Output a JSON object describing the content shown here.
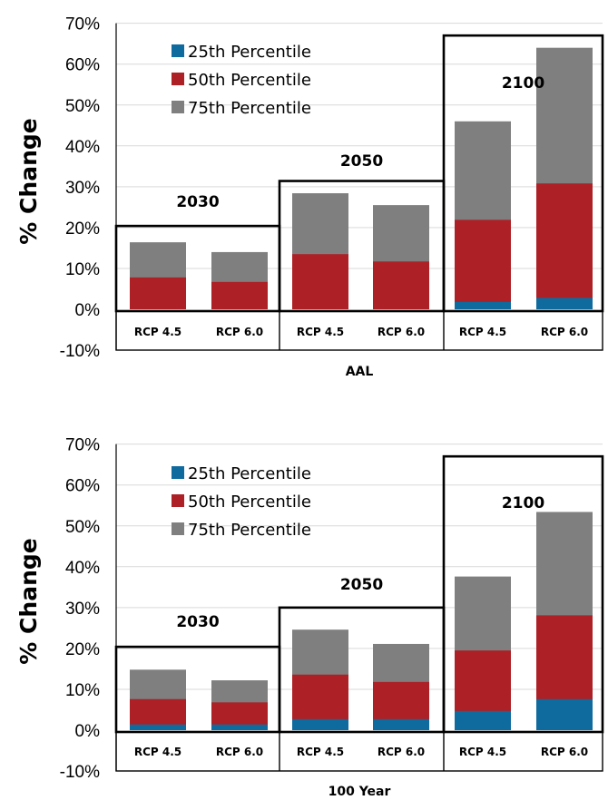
{
  "chart_data": [
    {
      "type": "bar",
      "stacked": "overlay",
      "xlabel": "AAL",
      "ylabel": "% Change",
      "ylim": [
        -10,
        70
      ],
      "yticks": [
        "-10%",
        "0%",
        "10%",
        "20%",
        "30%",
        "40%",
        "50%",
        "60%",
        "70%"
      ],
      "categories": [
        "RCP 4.5",
        "RCP 6.0",
        "RCP 4.5",
        "RCP 6.0",
        "RCP 4.5",
        "RCP 6.0"
      ],
      "groups": [
        {
          "label": "2030",
          "categories": [
            0,
            1
          ]
        },
        {
          "label": "2050",
          "categories": [
            2,
            3
          ]
        },
        {
          "label": "2100",
          "categories": [
            4,
            5
          ]
        }
      ],
      "series": [
        {
          "name": "75th Percentile",
          "color": "#7f7f7f",
          "values": [
            16.4,
            14.0,
            28.4,
            25.5,
            46.0,
            64.0
          ]
        },
        {
          "name": "50th Percentile",
          "color": "#ad2026",
          "values": [
            7.8,
            6.7,
            13.5,
            11.7,
            21.9,
            30.8
          ]
        },
        {
          "name": "25th Percentile",
          "color": "#0f6a9e",
          "values": [
            0,
            0,
            0,
            0,
            1.8,
            2.8
          ]
        }
      ],
      "legend": [
        "25th Percentile",
        "50th Percentile",
        "75th Percentile"
      ],
      "legend_position": "top-left",
      "grid": true
    },
    {
      "type": "bar",
      "stacked": "overlay",
      "xlabel": "100 Year",
      "ylabel": "% Change",
      "ylim": [
        -10,
        70
      ],
      "yticks": [
        "-10%",
        "0%",
        "10%",
        "20%",
        "30%",
        "40%",
        "50%",
        "60%",
        "70%"
      ],
      "categories": [
        "RCP 4.5",
        "RCP 6.0",
        "RCP 4.5",
        "RCP 6.0",
        "RCP 4.5",
        "RCP 6.0"
      ],
      "groups": [
        {
          "label": "2030",
          "categories": [
            0,
            1
          ]
        },
        {
          "label": "2050",
          "categories": [
            2,
            3
          ]
        },
        {
          "label": "2100",
          "categories": [
            4,
            5
          ]
        }
      ],
      "series": [
        {
          "name": "75th Percentile",
          "color": "#7f7f7f",
          "values": [
            14.8,
            12.2,
            24.6,
            21.1,
            37.6,
            53.4
          ]
        },
        {
          "name": "50th Percentile",
          "color": "#ad2026",
          "values": [
            7.6,
            6.8,
            13.6,
            11.8,
            19.5,
            28.1
          ]
        },
        {
          "name": "25th Percentile",
          "color": "#0f6a9e",
          "values": [
            1.4,
            1.4,
            2.7,
            2.7,
            4.7,
            7.6
          ]
        }
      ],
      "legend": [
        "25th Percentile",
        "50th Percentile",
        "75th Percentile"
      ],
      "legend_position": "top-left",
      "grid": true
    }
  ]
}
